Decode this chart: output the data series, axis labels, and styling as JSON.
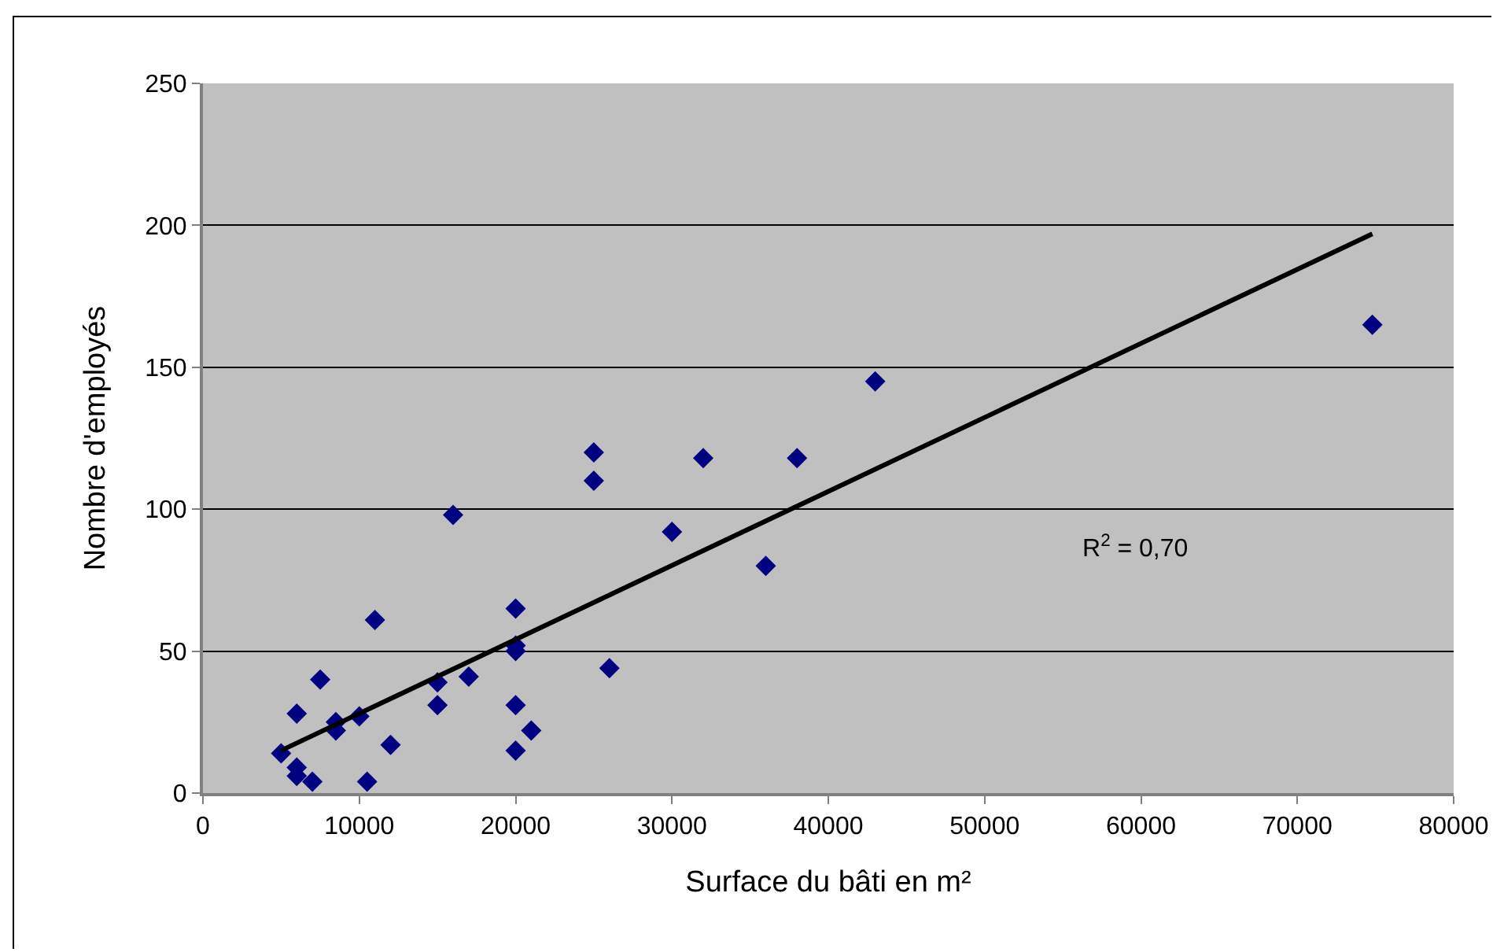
{
  "chart_data": {
    "type": "scatter",
    "xlabel": "Surface du bâti en m²",
    "ylabel": "Nombre d'employés",
    "xlim": [
      0,
      80000
    ],
    "xticks": [
      0,
      10000,
      20000,
      30000,
      40000,
      50000,
      60000,
      70000,
      80000
    ],
    "ylim": [
      0,
      250
    ],
    "yticks": [
      0,
      50,
      100,
      150,
      200,
      250
    ],
    "grid": "y",
    "legend": false,
    "annotations": [
      "R$^{2}$ = 0,70"
    ],
    "series": [
      {
        "marker": "diamond",
        "color": "#000080",
        "x": [
          5000,
          6000,
          6000,
          6000,
          7000,
          7500,
          8500,
          8500,
          10000,
          10500,
          11000,
          12000,
          15000,
          15000,
          16000,
          17000,
          20000,
          20000,
          20000,
          20000,
          20000,
          21000,
          25000,
          25000,
          26000,
          30000,
          32000,
          36000,
          38000,
          43000,
          74800
        ],
        "values": [
          14,
          28,
          9,
          6,
          4,
          40,
          25,
          22,
          27,
          4,
          61,
          17,
          39,
          31,
          98,
          41,
          65,
          52,
          50,
          31,
          15,
          22,
          120,
          110,
          44,
          92,
          118,
          80,
          118,
          145,
          165
        ]
      },
      {
        "type": "line",
        "color": "#000000",
        "x": [
          5000,
          74800
        ],
        "values": [
          15,
          197
        ]
      }
    ]
  }
}
